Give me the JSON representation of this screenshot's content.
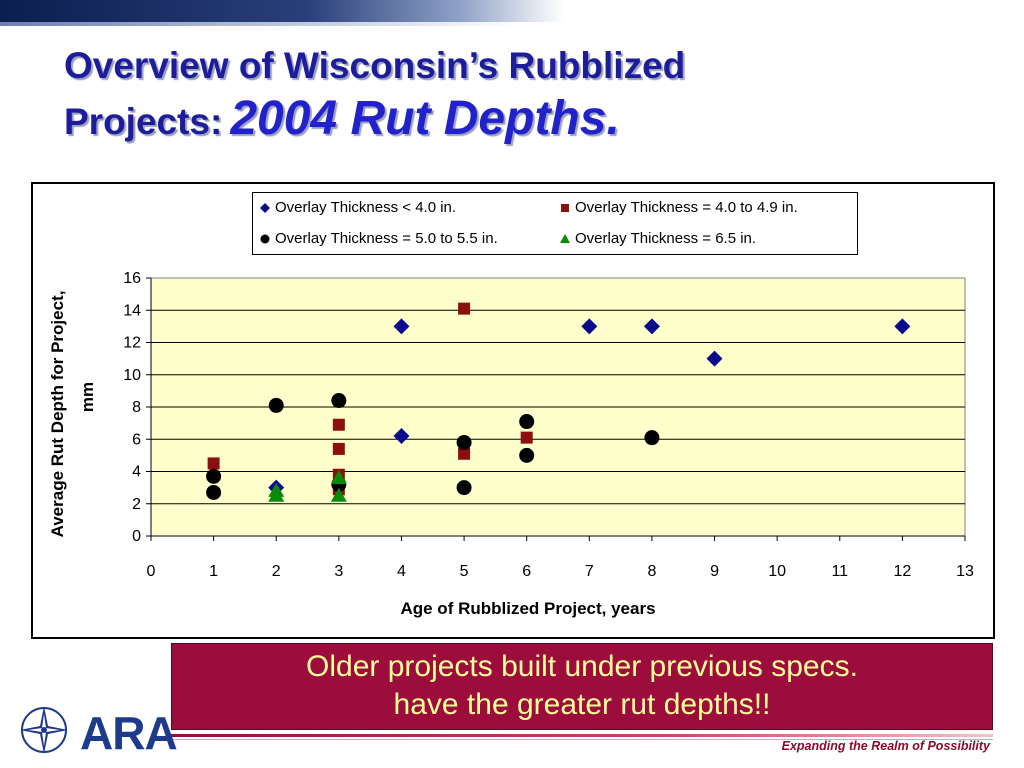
{
  "slide": {
    "title_line1": "Overview of Wisconsin’s Rubblized",
    "title_line2_prefix": "Projects:",
    "title_line2_accent": "2004 Rut Depths.",
    "callout_line1": "Older projects built under previous specs.",
    "callout_line2": "have the greater rut depths!!",
    "tagline": "Expanding the Realm of Possibility",
    "logo_text": "ARA",
    "colors": {
      "title": "#1c1c9c",
      "callout_bg": "#9c0c3c",
      "callout_text": "#ffff99",
      "plot_bg": "#ffffcc",
      "tagline": "#8b0a2a"
    }
  },
  "chart_data": {
    "type": "scatter",
    "title": "",
    "xlabel": "Age of Rubblized Project, years",
    "ylabel": "Average Rut Depth for Project, mm",
    "xlim": [
      0,
      13
    ],
    "ylim": [
      0,
      16
    ],
    "x_ticks": [
      "0",
      "1",
      "2",
      "3",
      "4",
      "5",
      "6",
      "7",
      "8",
      "9",
      "10",
      "11",
      "12",
      "13"
    ],
    "y_ticks": [
      "0",
      "2",
      "4",
      "6",
      "8",
      "10",
      "12",
      "14",
      "16"
    ],
    "grid": "horizontal",
    "legend_position": "top",
    "series": [
      {
        "name": "Overlay Thickness < 4.0 in.",
        "marker": "diamond",
        "color": "#0a0a8c",
        "points": [
          [
            2,
            3.0
          ],
          [
            4,
            13.0
          ],
          [
            4,
            6.2
          ],
          [
            7,
            13.0
          ],
          [
            8,
            13.0
          ],
          [
            9,
            11.0
          ],
          [
            12,
            13.0
          ]
        ]
      },
      {
        "name": "Overlay Thickness = 4.0 to 4.9 in.",
        "marker": "square",
        "color": "#8b0f0f",
        "points": [
          [
            1,
            4.5
          ],
          [
            3,
            6.9
          ],
          [
            3,
            5.4
          ],
          [
            3,
            3.8
          ],
          [
            3,
            2.9
          ],
          [
            5,
            14.1
          ],
          [
            5,
            5.1
          ],
          [
            6,
            6.1
          ]
        ]
      },
      {
        "name": "Overlay Thickness = 5.0 to 5.5 in.",
        "marker": "circle",
        "color": "#000000",
        "points": [
          [
            1,
            2.7
          ],
          [
            1,
            3.7
          ],
          [
            2,
            8.1
          ],
          [
            3,
            8.4
          ],
          [
            3,
            3.2
          ],
          [
            5,
            5.8
          ],
          [
            5,
            3.0
          ],
          [
            6,
            7.1
          ],
          [
            6,
            5.0
          ],
          [
            8,
            6.1
          ]
        ]
      },
      {
        "name": "Overlay Thickness = 6.5 in.",
        "marker": "triangle",
        "color": "#0a8a0a",
        "points": [
          [
            2,
            2.8
          ],
          [
            2,
            2.5
          ],
          [
            3,
            3.6
          ],
          [
            3,
            2.5
          ]
        ]
      }
    ]
  }
}
